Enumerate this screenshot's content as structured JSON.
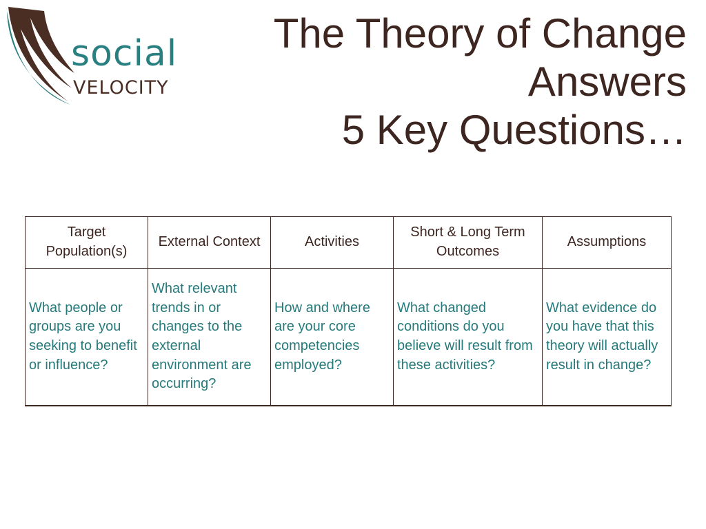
{
  "logo": {
    "line1": "social",
    "line2": "VELOCITY",
    "colors": {
      "teal": "#2a7f80",
      "brown": "#4a2e24"
    }
  },
  "title": {
    "line1": "The Theory of Change",
    "line2": "Answers",
    "line3": "5 Key Questions…"
  },
  "table": {
    "headers": [
      "Target Population(s)",
      "External Context",
      "Activities",
      "Short & Long Term Outcomes",
      "Assumptions"
    ],
    "cells": [
      "What people or groups are you seeking to benefit or influence?",
      "What relevant trends in or changes to the external environment are occurring?",
      "How and where are your core competencies employed?",
      "What changed conditions do you believe will result from these activities?",
      "What evidence do you have that this theory will actually result in change?"
    ]
  },
  "colors": {
    "title_text": "#3d2520",
    "cell_text": "#267a7b",
    "border": "#3d2520"
  }
}
